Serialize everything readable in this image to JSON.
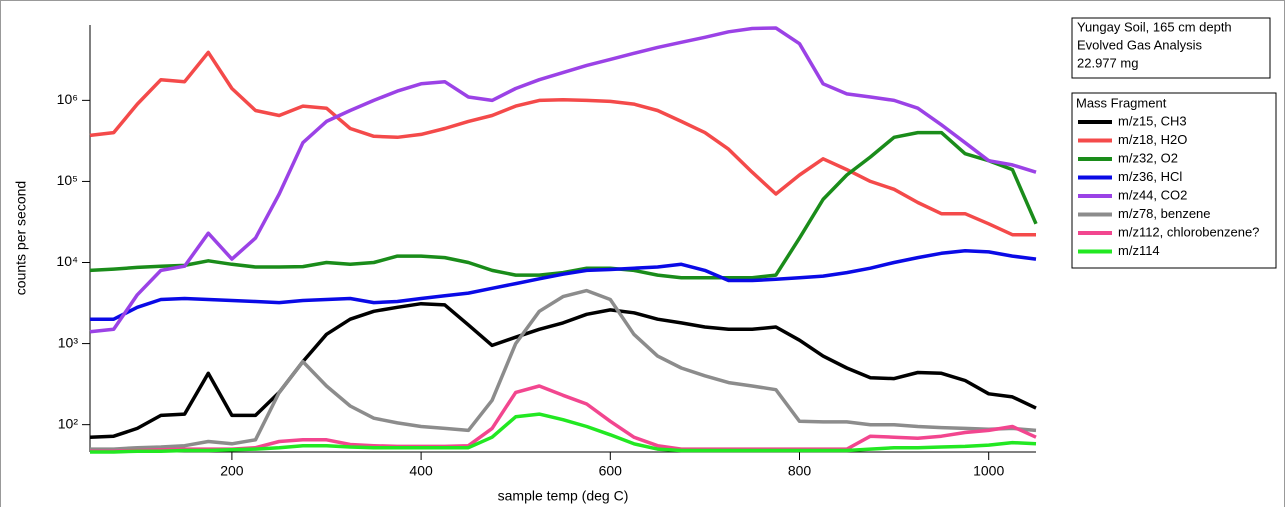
{
  "chart_data": {
    "type": "line",
    "title": "Yungay Soil, 165 cm depth",
    "subtitle": "Evolved Gas Analysis",
    "sample_mass": "22.977 mg",
    "legend_title": "Mass Fragment",
    "legend": "right",
    "x_label": "sample temp (deg C)",
    "y_label": "counts per second",
    "log_y": true,
    "xlim": [
      50,
      1050
    ],
    "ylim": [
      46,
      8500000
    ],
    "xticks": [
      200,
      400,
      600,
      800,
      1000
    ],
    "yticks": [
      {
        "value": 100,
        "label": "10²"
      },
      {
        "value": 1000,
        "label": "10³"
      },
      {
        "value": 10000,
        "label": "10⁴"
      },
      {
        "value": 100000,
        "label": "10⁵"
      },
      {
        "value": 1000000,
        "label": "10⁶"
      }
    ],
    "x": [
      50,
      75,
      100,
      125,
      150,
      175,
      200,
      225,
      250,
      275,
      300,
      325,
      350,
      375,
      400,
      425,
      450,
      475,
      500,
      525,
      550,
      575,
      600,
      625,
      650,
      675,
      700,
      725,
      750,
      775,
      800,
      825,
      850,
      875,
      900,
      925,
      950,
      975,
      1000,
      1025,
      1050
    ],
    "series": [
      {
        "name": "m/z15, CH3",
        "color": "#000000",
        "values": [
          70,
          72,
          90,
          130,
          135,
          430,
          130,
          130,
          250,
          600,
          1300,
          2000,
          2500,
          2800,
          3100,
          3000,
          1700,
          950,
          1200,
          1500,
          1800,
          2300,
          2600,
          2400,
          2000,
          1800,
          1600,
          1500,
          1500,
          1600,
          1100,
          700,
          500,
          380,
          370,
          440,
          430,
          350,
          240,
          220,
          160
        ]
      },
      {
        "name": "m/z18, H2O",
        "color": "#f44a4a",
        "values": [
          370000,
          400000,
          900000,
          1800000,
          1700000,
          3900000,
          1400000,
          750000,
          650000,
          850000,
          800000,
          450000,
          360000,
          350000,
          380000,
          450000,
          550000,
          650000,
          850000,
          1000000,
          1020000,
          1000000,
          970000,
          900000,
          750000,
          550000,
          400000,
          250000,
          130000,
          70000,
          120000,
          190000,
          140000,
          100000,
          80000,
          55000,
          40000,
          40000,
          30000,
          22000,
          22000
        ]
      },
      {
        "name": "m/z32, O2",
        "color": "#1a8c1a",
        "values": [
          8000,
          8300,
          8700,
          9000,
          9200,
          10500,
          9500,
          8800,
          8800,
          8900,
          10000,
          9500,
          10000,
          12000,
          12000,
          11500,
          10000,
          8000,
          7000,
          7000,
          7500,
          8500,
          8500,
          8000,
          7000,
          6500,
          6500,
          6500,
          6500,
          7000,
          20000,
          60000,
          120000,
          200000,
          350000,
          400000,
          400000,
          220000,
          180000,
          140000,
          30000
        ]
      },
      {
        "name": "m/z36, HCl",
        "color": "#0a0ae6",
        "values": [
          2000,
          2000,
          2800,
          3500,
          3600,
          3500,
          3400,
          3300,
          3200,
          3400,
          3500,
          3600,
          3200,
          3300,
          3600,
          3900,
          4200,
          4800,
          5500,
          6300,
          7200,
          8000,
          8200,
          8500,
          8800,
          9500,
          8000,
          6000,
          6000,
          6200,
          6500,
          6800,
          7500,
          8500,
          10000,
          11500,
          13000,
          14000,
          13500,
          12000,
          11000
        ]
      },
      {
        "name": "m/z44, CO2",
        "color": "#9b42e6",
        "values": [
          1400,
          1500,
          4000,
          8000,
          9000,
          23000,
          11000,
          20000,
          70000,
          300000,
          550000,
          750000,
          1000000,
          1300000,
          1600000,
          1700000,
          1100000,
          1000000,
          1400000,
          1800000,
          2200000,
          2700000,
          3200000,
          3800000,
          4500000,
          5200000,
          6000000,
          7000000,
          7700000,
          7800000,
          5000000,
          1600000,
          1200000,
          1100000,
          1000000,
          800000,
          500000,
          300000,
          180000,
          160000,
          130000
        ]
      },
      {
        "name": "m/z78, benzene",
        "color": "#8c8c8c",
        "values": [
          50,
          50,
          52,
          53,
          55,
          62,
          58,
          65,
          250,
          600,
          300,
          170,
          120,
          105,
          95,
          90,
          85,
          200,
          1000,
          2500,
          3800,
          4500,
          3500,
          1300,
          700,
          500,
          400,
          330,
          300,
          270,
          110,
          108,
          108,
          100,
          100,
          95,
          92,
          90,
          88,
          90,
          85
        ]
      },
      {
        "name": "m/z112, chlorobenzene?",
        "color": "#f2468f",
        "values": [
          47,
          47,
          48,
          49,
          50,
          50,
          50,
          52,
          62,
          65,
          65,
          57,
          55,
          54,
          54,
          54,
          55,
          90,
          250,
          300,
          230,
          180,
          110,
          70,
          55,
          50,
          50,
          50,
          50,
          50,
          50,
          50,
          50,
          72,
          70,
          68,
          72,
          80,
          85,
          95,
          70
        ]
      },
      {
        "name": "m/z114",
        "color": "#22e822",
        "values": [
          46,
          46,
          47,
          47,
          48,
          48,
          49,
          50,
          52,
          55,
          55,
          53,
          52,
          52,
          52,
          52,
          52,
          70,
          125,
          135,
          115,
          95,
          75,
          58,
          50,
          48,
          48,
          48,
          48,
          48,
          48,
          48,
          48,
          50,
          52,
          52,
          53,
          54,
          56,
          60,
          58
        ]
      }
    ]
  }
}
